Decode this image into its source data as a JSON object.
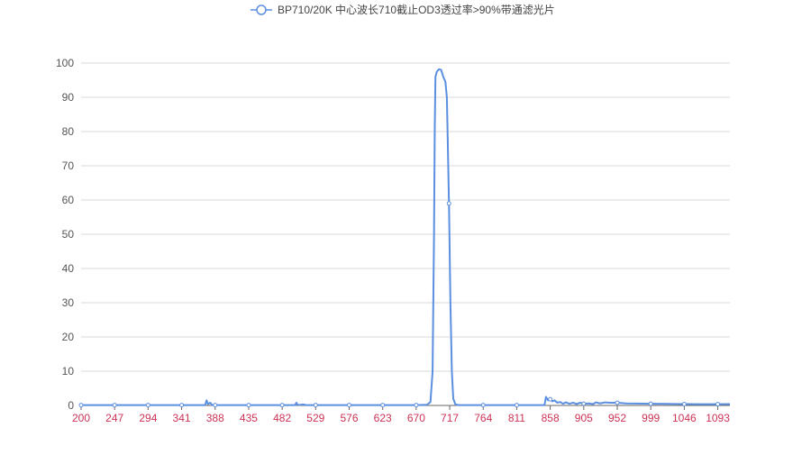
{
  "chart_data": {
    "type": "line",
    "title": "",
    "xlabel": "",
    "ylabel": "",
    "legend": {
      "position": "top-center",
      "entries": [
        "BP710/20K 中心波长710截止OD3透过率>90%带通滤光片"
      ]
    },
    "x_ticks": [
      200,
      247,
      294,
      341,
      388,
      435,
      482,
      529,
      576,
      623,
      670,
      717,
      764,
      811,
      858,
      905,
      952,
      999,
      1046,
      1093
    ],
    "y_ticks": [
      0,
      10,
      20,
      30,
      40,
      50,
      60,
      70,
      80,
      90,
      100
    ],
    "xlim": [
      200,
      1110
    ],
    "ylim": [
      0,
      100
    ],
    "grid": {
      "horizontal": true,
      "vertical": false
    },
    "colors": {
      "line": "#5b8fe0",
      "x_tick_labels": "#cc3355",
      "y_tick_labels": "#555555",
      "grid": "#d9d9d9",
      "axis": "#666666"
    },
    "series": [
      {
        "name": "BP710/20K 中心波长710截止OD3透过率>90%带通滤光片",
        "points": [
          [
            200,
            0.1
          ],
          [
            247,
            0.1
          ],
          [
            294,
            0.1
          ],
          [
            341,
            0.1
          ],
          [
            374,
            0.1
          ],
          [
            376,
            1.5
          ],
          [
            378,
            0.4
          ],
          [
            381,
            0.8
          ],
          [
            384,
            0.1
          ],
          [
            388,
            0.1
          ],
          [
            435,
            0.1
          ],
          [
            482,
            0.1
          ],
          [
            500,
            0.1
          ],
          [
            502,
            0.8
          ],
          [
            504,
            0.1
          ],
          [
            512,
            0.3
          ],
          [
            515,
            0.1
          ],
          [
            529,
            0.1
          ],
          [
            576,
            0.1
          ],
          [
            623,
            0.1
          ],
          [
            670,
            0.1
          ],
          [
            685,
            0.2
          ],
          [
            690,
            1.0
          ],
          [
            693,
            10
          ],
          [
            695,
            50
          ],
          [
            696,
            80
          ],
          [
            697,
            96
          ],
          [
            699,
            97.5
          ],
          [
            702,
            98.2
          ],
          [
            705,
            98
          ],
          [
            708,
            96
          ],
          [
            711,
            94.5
          ],
          [
            713,
            90
          ],
          [
            714,
            80
          ],
          [
            716,
            59
          ],
          [
            718,
            30
          ],
          [
            720,
            10
          ],
          [
            722,
            2
          ],
          [
            725,
            0.3
          ],
          [
            730,
            0.1
          ],
          [
            764,
            0.1
          ],
          [
            811,
            0.1
          ],
          [
            850,
            0.1
          ],
          [
            852,
            2.5
          ],
          [
            855,
            1.5
          ],
          [
            858,
            1.8
          ],
          [
            861,
            1.2
          ],
          [
            864,
            1.5
          ],
          [
            868,
            0.8
          ],
          [
            872,
            1.0
          ],
          [
            876,
            0.5
          ],
          [
            880,
            0.9
          ],
          [
            885,
            0.5
          ],
          [
            890,
            0.8
          ],
          [
            895,
            0.4
          ],
          [
            900,
            0.8
          ],
          [
            905,
            0.5
          ],
          [
            912,
            0.6
          ],
          [
            918,
            0.4
          ],
          [
            922,
            0.9
          ],
          [
            928,
            0.6
          ],
          [
            935,
            0.9
          ],
          [
            942,
            0.8
          ],
          [
            952,
            0.8
          ],
          [
            965,
            0.6
          ],
          [
            980,
            0.55
          ],
          [
            999,
            0.5
          ],
          [
            1020,
            0.45
          ],
          [
            1046,
            0.4
          ],
          [
            1070,
            0.35
          ],
          [
            1093,
            0.35
          ],
          [
            1110,
            0.4
          ]
        ],
        "markers_at": [
          200,
          247,
          294,
          341,
          388,
          435,
          482,
          529,
          576,
          623,
          670,
          716,
          764,
          811,
          858,
          905,
          952,
          999,
          1046,
          1093
        ]
      }
    ]
  }
}
